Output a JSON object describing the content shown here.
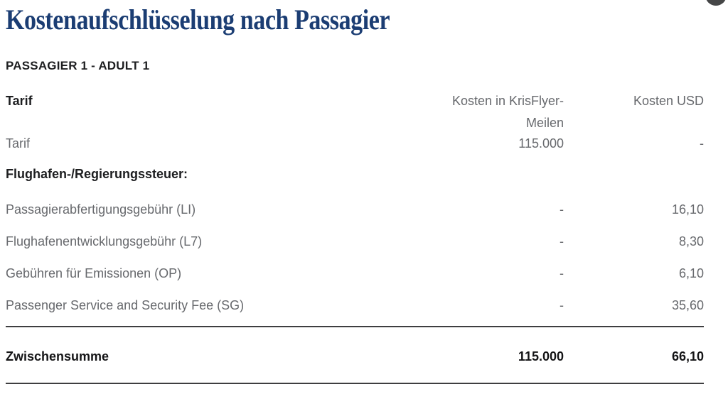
{
  "page": {
    "title": "Kostenaufschlüsselung nach Passagier",
    "section_heading": "PASSAGIER 1 - ADULT 1"
  },
  "table": {
    "header": {
      "label_col": "Tarif",
      "miles_col_line1": "Kosten in KrisFlyer-",
      "miles_col_line2": "Meilen",
      "usd_col": "Kosten USD"
    },
    "fare_row": {
      "label": "Tarif",
      "miles": "115.000",
      "usd": "-"
    },
    "category_heading": "Flughafen-/Regierungssteuer:",
    "fee_rows": [
      {
        "label": "Passagierabfertigungsgebühr (LI)",
        "miles": "-",
        "usd": "16,10"
      },
      {
        "label": "Flughafenentwicklungsgebühr (L7)",
        "miles": "-",
        "usd": "8,30"
      },
      {
        "label": "Gebühren für Emissionen (OP)",
        "miles": "-",
        "usd": "6,10"
      },
      {
        "label": "Passenger Service and Security Fee (SG)",
        "miles": "-",
        "usd": "35,60"
      }
    ],
    "subtotal": {
      "label": "Zwischensumme",
      "miles": "115.000",
      "usd": "66,10"
    }
  },
  "colors": {
    "title_navy": "#1b3d73",
    "text_dark": "#1d1e20",
    "text_gray": "#67696d",
    "divider": "#3e3e40",
    "floating_button": "#454647"
  }
}
